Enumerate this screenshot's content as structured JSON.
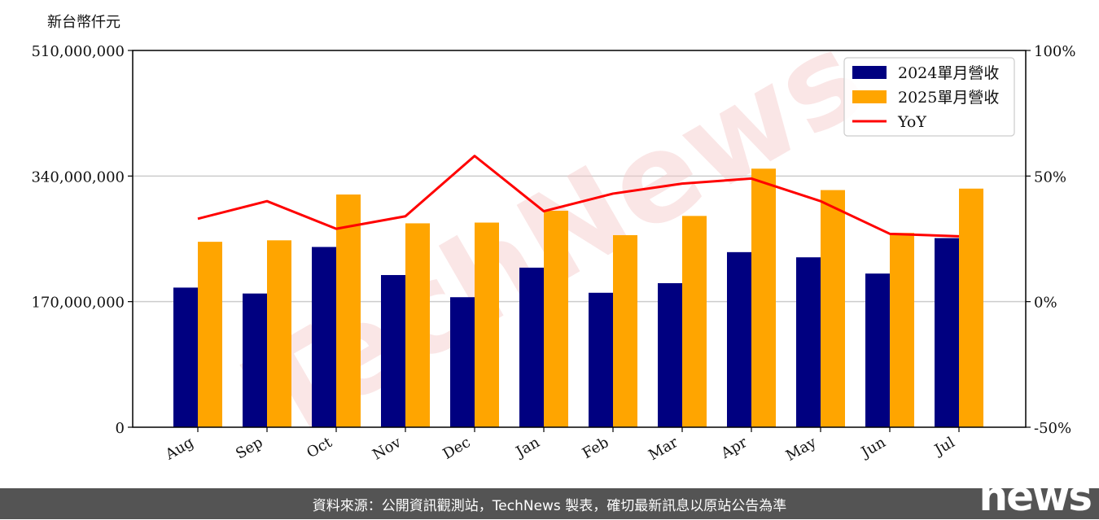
{
  "chart_data": {
    "type": "bar",
    "unit_label": "新台幣仟元",
    "categories": [
      "Aug",
      "Sep",
      "Oct",
      "Nov",
      "Dec",
      "Jan",
      "Feb",
      "Mar",
      "Apr",
      "May",
      "Jun",
      "Jul"
    ],
    "series": [
      {
        "name": "2024單月營收",
        "type": "bar",
        "axis": "left",
        "color": "#000080",
        "values": [
          189000000,
          181000000,
          244000000,
          206000000,
          176000000,
          216000000,
          182000000,
          195000000,
          237000000,
          230000000,
          208000000,
          256000000
        ]
      },
      {
        "name": "2025單月營收",
        "type": "bar",
        "axis": "left",
        "color": "#FFA500",
        "values": [
          251000000,
          253000000,
          315000000,
          276000000,
          277000000,
          293000000,
          260000000,
          286000000,
          350000000,
          321000000,
          263000000,
          323000000
        ]
      },
      {
        "name": "YoY",
        "type": "line",
        "axis": "right",
        "color": "#FF0000",
        "values": [
          33,
          40,
          29,
          34,
          58,
          36,
          43,
          47,
          49,
          40,
          27,
          26
        ]
      }
    ],
    "y_left": {
      "ylim": [
        0,
        510000000
      ],
      "ticks": [
        "0",
        "170,000,000",
        "340,000,000",
        "510,000,000"
      ]
    },
    "y_right": {
      "ylim": [
        -50,
        100
      ],
      "ticks": [
        "-50%",
        "0%",
        "50%",
        "100%"
      ]
    },
    "grid": "horizontal",
    "legend_position": "top-right"
  },
  "watermark": "TechNews",
  "footer_text": "資料來源：公開資訊觀測站，TechNews 製表，確切最新訊息以原站公告為準",
  "brand": "news"
}
